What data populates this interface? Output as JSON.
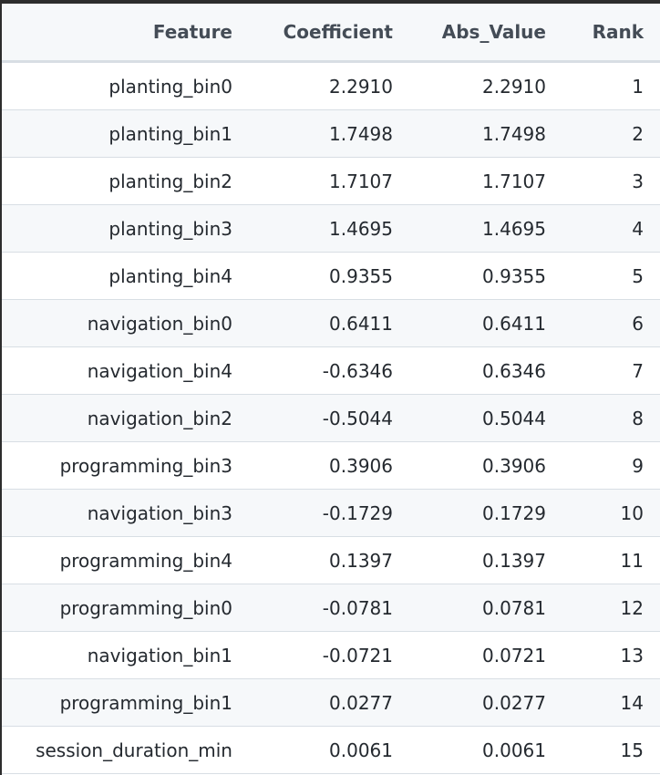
{
  "table": {
    "columns": [
      "Feature",
      "Coefficient",
      "Abs_Value",
      "Rank"
    ],
    "rows": [
      {
        "feature": "planting_bin0",
        "coefficient": "2.2910",
        "abs_value": "2.2910",
        "rank": "1"
      },
      {
        "feature": "planting_bin1",
        "coefficient": "1.7498",
        "abs_value": "1.7498",
        "rank": "2"
      },
      {
        "feature": "planting_bin2",
        "coefficient": "1.7107",
        "abs_value": "1.7107",
        "rank": "3"
      },
      {
        "feature": "planting_bin3",
        "coefficient": "1.4695",
        "abs_value": "1.4695",
        "rank": "4"
      },
      {
        "feature": "planting_bin4",
        "coefficient": "0.9355",
        "abs_value": "0.9355",
        "rank": "5"
      },
      {
        "feature": "navigation_bin0",
        "coefficient": "0.6411",
        "abs_value": "0.6411",
        "rank": "6"
      },
      {
        "feature": "navigation_bin4",
        "coefficient": "-0.6346",
        "abs_value": "0.6346",
        "rank": "7"
      },
      {
        "feature": "navigation_bin2",
        "coefficient": "-0.5044",
        "abs_value": "0.5044",
        "rank": "8"
      },
      {
        "feature": "programming_bin3",
        "coefficient": "0.3906",
        "abs_value": "0.3906",
        "rank": "9"
      },
      {
        "feature": "navigation_bin3",
        "coefficient": "-0.1729",
        "abs_value": "0.1729",
        "rank": "10"
      },
      {
        "feature": "programming_bin4",
        "coefficient": "0.1397",
        "abs_value": "0.1397",
        "rank": "11"
      },
      {
        "feature": "programming_bin0",
        "coefficient": "-0.0781",
        "abs_value": "0.0781",
        "rank": "12"
      },
      {
        "feature": "navigation_bin1",
        "coefficient": "-0.0721",
        "abs_value": "0.0721",
        "rank": "13"
      },
      {
        "feature": "programming_bin1",
        "coefficient": "0.0277",
        "abs_value": "0.0277",
        "rank": "14"
      },
      {
        "feature": "session_duration_min",
        "coefficient": "0.0061",
        "abs_value": "0.0061",
        "rank": "15"
      }
    ]
  },
  "colors": {
    "header_bg": "#f6f8fa",
    "stripe_bg": "#f6f8fa",
    "border": "#d8dee4",
    "text": "#24292f",
    "frame": "#2d2d2d"
  }
}
